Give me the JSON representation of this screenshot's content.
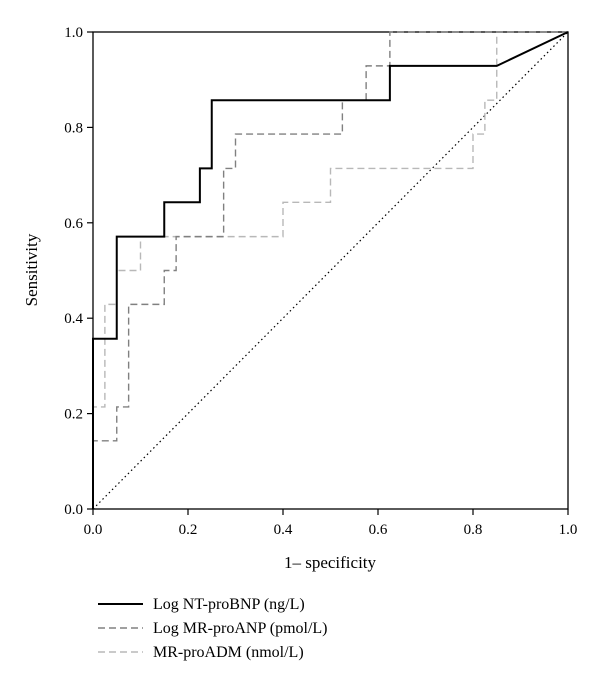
{
  "chart_data": {
    "type": "line",
    "xlabel": "1– specificity",
    "ylabel": "Sensitivity",
    "xlim": [
      0,
      1
    ],
    "ylim": [
      0,
      1
    ],
    "x_ticks": [
      "0.0",
      "0.2",
      "0.4",
      "0.6",
      "0.8",
      "1.0"
    ],
    "y_ticks": [
      "0.0",
      "0.2",
      "0.4",
      "0.6",
      "0.8",
      "1.0"
    ],
    "grid": false,
    "legend_position": "bottom-left",
    "reference_line": {
      "style": "dotted",
      "x": [
        0,
        1
      ],
      "y": [
        0,
        1
      ]
    },
    "series": [
      {
        "name": "Log NT-proBNP (ng/L)",
        "style": "solid",
        "color": "#000000",
        "x": [
          0,
          0,
          0.05,
          0.05,
          0.15,
          0.15,
          0.225,
          0.225,
          0.25,
          0.25,
          0.625,
          0.625,
          0.85,
          1.0
        ],
        "y": [
          0,
          0.357,
          0.357,
          0.571,
          0.571,
          0.643,
          0.643,
          0.714,
          0.714,
          0.857,
          0.857,
          0.929,
          0.929,
          1.0
        ]
      },
      {
        "name": "Log MR-proANP (pmol/L)",
        "style": "dashed",
        "color": "#808080",
        "x": [
          0,
          0,
          0.05,
          0.05,
          0.075,
          0.075,
          0.15,
          0.15,
          0.175,
          0.175,
          0.275,
          0.275,
          0.3,
          0.3,
          0.525,
          0.525,
          0.575,
          0.575,
          0.625,
          0.625,
          1.0
        ],
        "y": [
          0,
          0.143,
          0.143,
          0.214,
          0.214,
          0.429,
          0.429,
          0.5,
          0.5,
          0.571,
          0.571,
          0.714,
          0.714,
          0.786,
          0.786,
          0.857,
          0.857,
          0.929,
          0.929,
          1.0,
          1.0
        ]
      },
      {
        "name": "MR-proADM (nmol/L)",
        "style": "dashed",
        "color": "#b8b8b8",
        "x": [
          0,
          0,
          0.025,
          0.025,
          0.05,
          0.05,
          0.1,
          0.1,
          0.4,
          0.4,
          0.5,
          0.5,
          0.8,
          0.8,
          0.825,
          0.825,
          0.85,
          0.85,
          1.0
        ],
        "y": [
          0,
          0.214,
          0.214,
          0.429,
          0.429,
          0.5,
          0.5,
          0.571,
          0.571,
          0.643,
          0.643,
          0.714,
          0.714,
          0.786,
          0.786,
          0.857,
          0.857,
          1.0,
          1.0
        ]
      }
    ]
  }
}
